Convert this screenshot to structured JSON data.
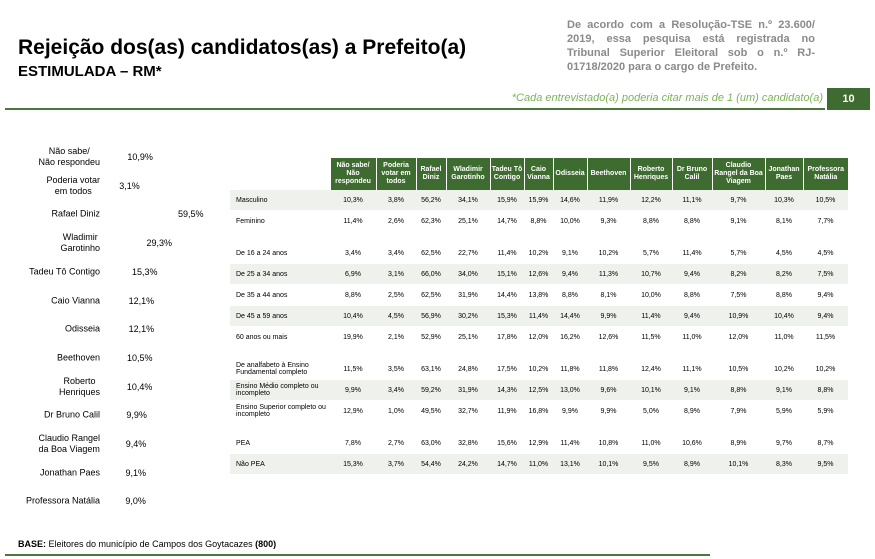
{
  "header": {
    "title": "Rejeição dos(as) candidatos(as) a Prefeito(a)",
    "subtitle": "ESTIMULADA – RM*",
    "note": "De acordo com a Resolução-TSE n.º 23.600/ 2019, essa pesquisa está registrada no Tribunal Superior Eleitoral sob o n.º RJ-01718/2020 para o cargo de Prefeito.",
    "footnote": "*Cada entrevistado(a) poderia citar mais de 1 (um) candidato(a)",
    "page": "10"
  },
  "chart_data": {
    "type": "bar",
    "orientation": "horizontal",
    "color": "#3e6b2f",
    "categories": [
      "Não sabe/\nNão respondeu",
      "Poderia votar\nem todos",
      "Rafael Diniz",
      "Wladimir\nGarotinho",
      "Tadeu Tô Contigo",
      "Caio Vianna",
      "Odisseia",
      "Beethoven",
      "Roberto\nHenriques",
      "Dr Bruno Calil",
      "Claudio Rangel\nda Boa Viagem",
      "Jonathan Paes",
      "Professora Natália"
    ],
    "values": [
      10.9,
      3.1,
      59.5,
      29.3,
      15.3,
      12.1,
      12.1,
      10.5,
      10.4,
      9.9,
      9.4,
      9.1,
      9.0
    ],
    "value_labels": [
      "10,9%",
      "3,1%",
      "59,5%",
      "29,3%",
      "15,3%",
      "12,1%",
      "12,1%",
      "10,5%",
      "10,4%",
      "9,9%",
      "9,4%",
      "9,1%",
      "9,0%"
    ]
  },
  "table": {
    "columns": [
      "Não sabe/ Não respondeu",
      "Poderia votar em todos",
      "Rafael Diniz",
      "Wladimir Garotinho",
      "Tadeu Tô Contigo",
      "Caio Vianna",
      "Odisseia",
      "Beethoven",
      "Roberto Henriques",
      "Dr Bruno Calil",
      "Claudio Rangel da Boa Viagem",
      "Jonathan Paes",
      "Professora Natália"
    ],
    "groups": [
      [
        {
          "label": "Masculino",
          "cells": [
            "10,3%",
            "3,8%",
            "56,2%",
            "34,1%",
            "15,9%",
            "15,9%",
            "14,6%",
            "11,9%",
            "12,2%",
            "11,1%",
            "9,7%",
            "10,3%",
            "10,5%"
          ]
        },
        {
          "label": "Feminino",
          "cells": [
            "11,4%",
            "2,6%",
            "62,3%",
            "25,1%",
            "14,7%",
            "8,8%",
            "10,0%",
            "9,3%",
            "8,8%",
            "8,8%",
            "9,1%",
            "8,1%",
            "7,7%"
          ]
        }
      ],
      [
        {
          "label": "De 16 a 24 anos",
          "cells": [
            "3,4%",
            "3,4%",
            "62,5%",
            "22,7%",
            "11,4%",
            "10,2%",
            "9,1%",
            "10,2%",
            "5,7%",
            "11,4%",
            "5,7%",
            "4,5%",
            "4,5%"
          ]
        },
        {
          "label": "De 25 a 34 anos",
          "cells": [
            "6,9%",
            "3,1%",
            "66,0%",
            "34,0%",
            "15,1%",
            "12,6%",
            "9,4%",
            "11,3%",
            "10,7%",
            "9,4%",
            "8,2%",
            "8,2%",
            "7,5%"
          ]
        },
        {
          "label": "De 35 a 44 anos",
          "cells": [
            "8,8%",
            "2,5%",
            "62,5%",
            "31,9%",
            "14,4%",
            "13,8%",
            "8,8%",
            "8,1%",
            "10,0%",
            "8,8%",
            "7,5%",
            "8,8%",
            "9,4%"
          ]
        },
        {
          "label": "De 45 a 59 anos",
          "cells": [
            "10,4%",
            "4,5%",
            "56,9%",
            "30,2%",
            "15,3%",
            "11,4%",
            "14,4%",
            "9,9%",
            "11,4%",
            "9,4%",
            "10,9%",
            "10,4%",
            "9,4%"
          ]
        },
        {
          "label": "60 anos ou mais",
          "cells": [
            "19,9%",
            "2,1%",
            "52,9%",
            "25,1%",
            "17,8%",
            "12,0%",
            "16,2%",
            "12,6%",
            "11,5%",
            "11,0%",
            "12,0%",
            "11,0%",
            "11,5%"
          ]
        }
      ],
      [
        {
          "label": "De analfabeto à Ensino Fundamental completo",
          "cells": [
            "11,5%",
            "3,5%",
            "63,1%",
            "24,8%",
            "17,5%",
            "10,2%",
            "11,8%",
            "11,8%",
            "12,4%",
            "11,1%",
            "10,5%",
            "10,2%",
            "10,2%"
          ]
        },
        {
          "label": "Ensino Médio completo ou incompleto",
          "cells": [
            "9,9%",
            "3,4%",
            "59,2%",
            "31,9%",
            "14,3%",
            "12,5%",
            "13,0%",
            "9,6%",
            "10,1%",
            "9,1%",
            "8,8%",
            "9,1%",
            "8,8%"
          ]
        },
        {
          "label": "Ensino Superior completo ou incompleto",
          "cells": [
            "12,9%",
            "1,0%",
            "49,5%",
            "32,7%",
            "11,9%",
            "16,8%",
            "9,9%",
            "9,9%",
            "5,0%",
            "8,9%",
            "7,9%",
            "5,9%",
            "5,9%"
          ]
        }
      ],
      [
        {
          "label": "PEA",
          "cells": [
            "7,8%",
            "2,7%",
            "63,0%",
            "32,8%",
            "15,6%",
            "12,9%",
            "11,4%",
            "10,8%",
            "11,0%",
            "10,6%",
            "8,9%",
            "9,7%",
            "8,7%"
          ]
        },
        {
          "label": "Não PEA",
          "cells": [
            "15,3%",
            "3,7%",
            "54,4%",
            "24,2%",
            "14,7%",
            "11,0%",
            "13,1%",
            "10,1%",
            "9,5%",
            "8,9%",
            "10,1%",
            "8,3%",
            "9,5%"
          ]
        }
      ]
    ]
  },
  "footer": {
    "label": "BASE:",
    "text": "Eleitores do município de Campos dos Goytacazes",
    "count": "(800)"
  }
}
